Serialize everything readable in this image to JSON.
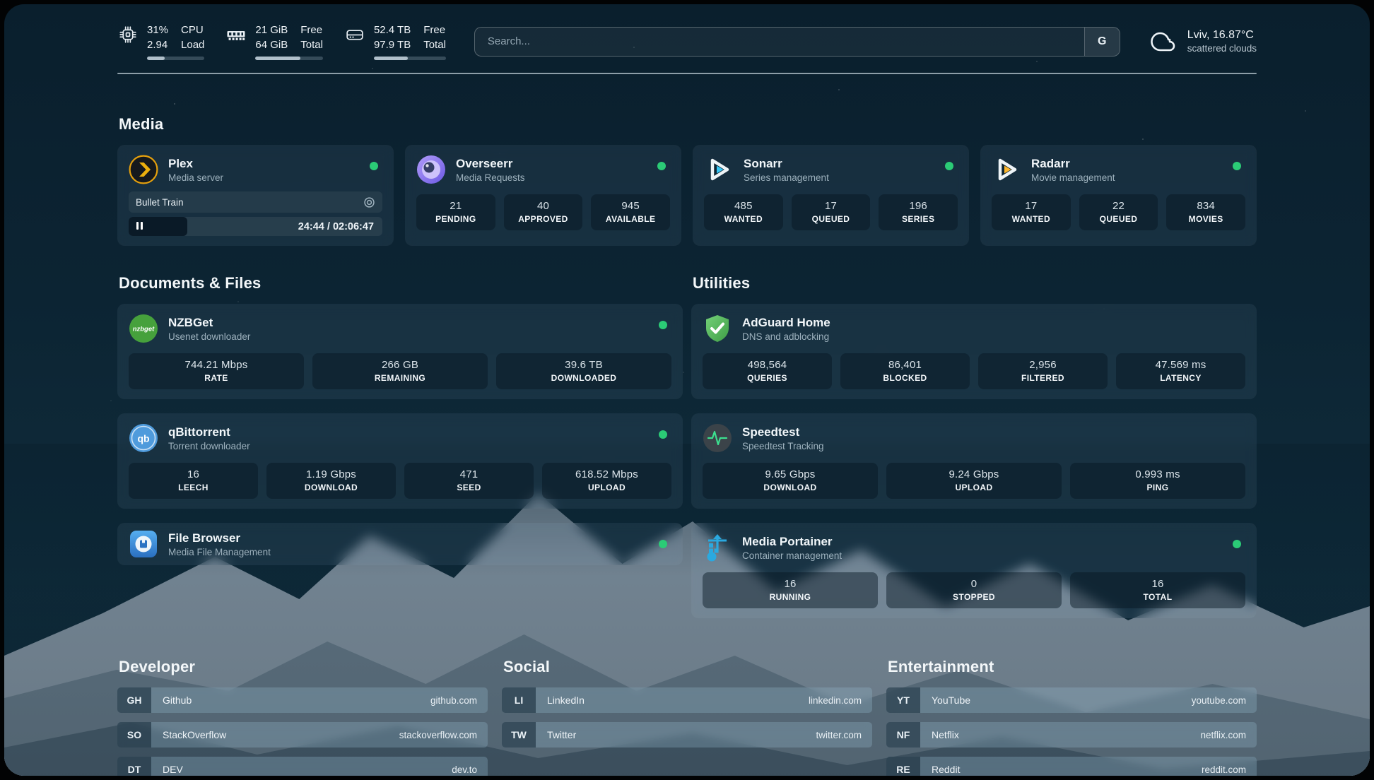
{
  "system_stats": {
    "cpu": {
      "value": "31%",
      "sub": "2.94",
      "label_top": "CPU",
      "label_bottom": "Load",
      "bar_percent": 31
    },
    "memory": {
      "value": "21 GiB",
      "sub": "64 GiB",
      "label_top": "Free",
      "label_bottom": "Total",
      "bar_percent": 67
    },
    "disk": {
      "value": "52.4 TB",
      "sub": "97.9 TB",
      "label_top": "Free",
      "label_bottom": "Total",
      "bar_percent": 47
    }
  },
  "search": {
    "placeholder": "Search...",
    "engine_button": "G"
  },
  "weather": {
    "location": "Lviv, 16.87°C",
    "condition": "scattered clouds"
  },
  "sections": {
    "media": {
      "title": "Media",
      "plex": {
        "title": "Plex",
        "subtitle": "Media server",
        "online": true,
        "now_playing": {
          "title": "Bullet Train",
          "time": "24:44 / 02:06:47",
          "progress_percent": 20,
          "state": "paused"
        }
      },
      "overseerr": {
        "title": "Overseerr",
        "subtitle": "Media Requests",
        "online": true,
        "stats": [
          {
            "value": "21",
            "label": "PENDING"
          },
          {
            "value": "40",
            "label": "APPROVED"
          },
          {
            "value": "945",
            "label": "AVAILABLE"
          }
        ]
      },
      "sonarr": {
        "title": "Sonarr",
        "subtitle": "Series management",
        "online": true,
        "stats": [
          {
            "value": "485",
            "label": "WANTED"
          },
          {
            "value": "17",
            "label": "QUEUED"
          },
          {
            "value": "196",
            "label": "SERIES"
          }
        ]
      },
      "radarr": {
        "title": "Radarr",
        "subtitle": "Movie management",
        "online": true,
        "stats": [
          {
            "value": "17",
            "label": "WANTED"
          },
          {
            "value": "22",
            "label": "QUEUED"
          },
          {
            "value": "834",
            "label": "MOVIES"
          }
        ]
      }
    },
    "documents": {
      "title": "Documents & Files",
      "nzbget": {
        "title": "NZBGet",
        "subtitle": "Usenet downloader",
        "online": true,
        "stats": [
          {
            "value": "744.21 Mbps",
            "label": "RATE"
          },
          {
            "value": "266 GB",
            "label": "REMAINING"
          },
          {
            "value": "39.6 TB",
            "label": "DOWNLOADED"
          }
        ]
      },
      "qbittorrent": {
        "title": "qBittorrent",
        "subtitle": "Torrent downloader",
        "online": true,
        "stats": [
          {
            "value": "16",
            "label": "LEECH"
          },
          {
            "value": "1.19 Gbps",
            "label": "DOWNLOAD"
          },
          {
            "value": "471",
            "label": "SEED"
          },
          {
            "value": "618.52 Mbps",
            "label": "UPLOAD"
          }
        ]
      },
      "filebrowser": {
        "title": "File Browser",
        "subtitle": "Media File Management",
        "online": true
      }
    },
    "utilities": {
      "title": "Utilities",
      "adguard": {
        "title": "AdGuard Home",
        "subtitle": "DNS and adblocking",
        "stats": [
          {
            "value": "498,564",
            "label": "QUERIES"
          },
          {
            "value": "86,401",
            "label": "BLOCKED"
          },
          {
            "value": "2,956",
            "label": "FILTERED"
          },
          {
            "value": "47.569 ms",
            "label": "LATENCY"
          }
        ]
      },
      "speedtest": {
        "title": "Speedtest",
        "subtitle": "Speedtest Tracking",
        "stats": [
          {
            "value": "9.65 Gbps",
            "label": "DOWNLOAD"
          },
          {
            "value": "9.24 Gbps",
            "label": "UPLOAD"
          },
          {
            "value": "0.993 ms",
            "label": "PING"
          }
        ]
      },
      "portainer": {
        "title": "Media Portainer",
        "subtitle": "Container management",
        "online": true,
        "stats": [
          {
            "value": "16",
            "label": "RUNNING"
          },
          {
            "value": "0",
            "label": "STOPPED"
          },
          {
            "value": "16",
            "label": "TOTAL"
          }
        ]
      }
    },
    "links": {
      "developer": {
        "title": "Developer",
        "items": [
          {
            "abbr": "GH",
            "label": "Github",
            "url": "github.com"
          },
          {
            "abbr": "SO",
            "label": "StackOverflow",
            "url": "stackoverflow.com"
          },
          {
            "abbr": "DT",
            "label": "DEV",
            "url": "dev.to"
          }
        ]
      },
      "social": {
        "title": "Social",
        "items": [
          {
            "abbr": "LI",
            "label": "LinkedIn",
            "url": "linkedin.com"
          },
          {
            "abbr": "TW",
            "label": "Twitter",
            "url": "twitter.com"
          }
        ]
      },
      "entertainment": {
        "title": "Entertainment",
        "items": [
          {
            "abbr": "YT",
            "label": "YouTube",
            "url": "youtube.com"
          },
          {
            "abbr": "NF",
            "label": "Netflix",
            "url": "netflix.com"
          },
          {
            "abbr": "RE",
            "label": "Reddit",
            "url": "reddit.com"
          }
        ]
      }
    }
  },
  "colors": {
    "status_online": "#2bcb76",
    "plex_yellow": "#e5a00d",
    "overseerr_purple": "#7c66ec",
    "sonarr_blue": "#36c6f4",
    "radarr_yellow": "#fdb62c",
    "nzbget_green": "#46a13c",
    "qbittorrent_blue": "#4f9bdc",
    "adguard_green": "#4caf50",
    "speedtest_green": "#3ce08f",
    "portainer_blue": "#2aa9e0"
  }
}
